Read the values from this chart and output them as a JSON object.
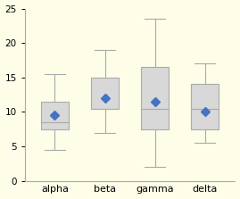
{
  "categories": [
    "alpha",
    "beta",
    "gamma",
    "delta"
  ],
  "boxes": [
    {
      "whisker_low": 4.5,
      "q1": 7.5,
      "median": 8.5,
      "q3": 11.5,
      "whisker_high": 15.5,
      "mean": 9.5
    },
    {
      "whisker_low": 7.0,
      "q1": 10.5,
      "median": 10.5,
      "q3": 15.0,
      "whisker_high": 19.0,
      "mean": 12.0
    },
    {
      "whisker_low": 2.0,
      "q1": 7.5,
      "median": 10.5,
      "q3": 16.5,
      "whisker_high": 23.5,
      "mean": 11.5
    },
    {
      "whisker_low": 5.5,
      "q1": 7.5,
      "median": 10.5,
      "q3": 14.0,
      "whisker_high": 17.0,
      "mean": 10.0
    }
  ],
  "ylim": [
    0,
    25
  ],
  "yticks": [
    0,
    5,
    10,
    15,
    20,
    25
  ],
  "box_color": "#d8d8d8",
  "box_edge_color": "#aaaaaa",
  "whisker_color": "#aaaaaa",
  "median_color": "#aaaaaa",
  "mean_color": "#4472c4",
  "background_color": "#fdfde8",
  "box_width": 0.55,
  "mean_marker_size": 5,
  "tick_fontsize": 7.5,
  "label_fontsize": 8
}
